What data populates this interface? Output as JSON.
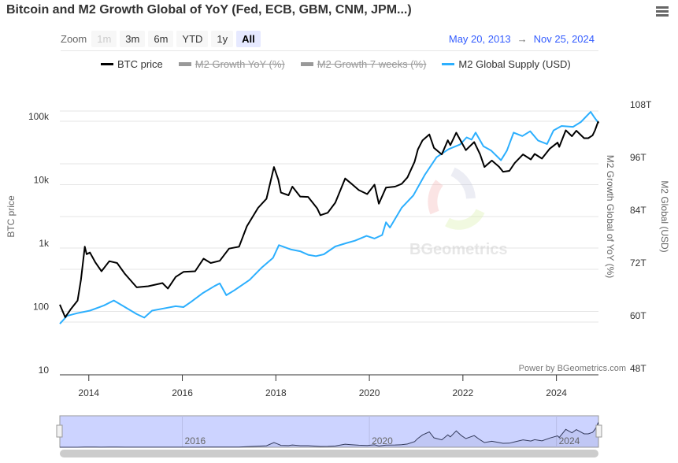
{
  "title": "Bitcoin and M2 Growth Global of YoY (Fed, ECB, GBM, CNM, JPM...)",
  "menu_icon": "hamburger-menu-icon",
  "range_selector": {
    "label": "Zoom",
    "buttons": [
      {
        "label": "1m",
        "state": "disabled"
      },
      {
        "label": "3m",
        "state": "normal"
      },
      {
        "label": "6m",
        "state": "normal"
      },
      {
        "label": "YTD",
        "state": "normal"
      },
      {
        "label": "1y",
        "state": "normal"
      },
      {
        "label": "All",
        "state": "active"
      }
    ],
    "from": "May 20, 2013",
    "arrow": "→",
    "to": "Nov 25, 2024"
  },
  "credit": "Power by BGeometrics.com",
  "watermark": "BGeometrics",
  "colors": {
    "btc": "#000000",
    "m2": "#2caffe",
    "navigator_fill": "#ccd3ff",
    "range_text": "#335cff"
  },
  "chart_data": {
    "type": "line",
    "title": "Bitcoin and M2 Growth Global of YoY (Fed, ECB, GBM, CNM, JPM...)",
    "xrange": [
      "2013-05-20",
      "2024-11-25"
    ],
    "x_ticks": [
      "2014",
      "2016",
      "2018",
      "2020",
      "2022",
      "2024"
    ],
    "legend": [
      {
        "name": "BTC price",
        "visible": true
      },
      {
        "name": "M2 Growth YoY (%)",
        "visible": false
      },
      {
        "name": "M2 Growth 7 weeks (%)",
        "visible": false
      },
      {
        "name": "M2 Global Supply (USD)",
        "visible": true
      }
    ],
    "legend_position": "top",
    "grid": true,
    "y_left": {
      "title": "BTC price",
      "scale": "log",
      "range": [
        10,
        100000
      ],
      "ticks": [
        "10",
        "100",
        "1k",
        "10k",
        "100k"
      ]
    },
    "y_right_1": {
      "title": "M2 Growth Global of YoY (%)"
    },
    "y_right_2": {
      "title": "M2 Global (USD)",
      "range": [
        48,
        108
      ],
      "unit": "T",
      "ticks": [
        "48T",
        "60T",
        "72T",
        "84T",
        "96T",
        "108T"
      ]
    },
    "navigator_ticks": [
      "2016",
      "2020",
      "2024"
    ],
    "series": [
      {
        "name": "BTC price",
        "axis": "left",
        "points": [
          [
            "2013-05-20",
            128
          ],
          [
            "2013-07-01",
            81
          ],
          [
            "2013-08-15",
            110
          ],
          [
            "2013-10-05",
            148
          ],
          [
            "2013-11-01",
            316
          ],
          [
            "2013-12-01",
            1050
          ],
          [
            "2013-12-15",
            800
          ],
          [
            "2014-01-10",
            850
          ],
          [
            "2014-02-20",
            600
          ],
          [
            "2014-04-10",
            430
          ],
          [
            "2014-06-10",
            620
          ],
          [
            "2014-08-10",
            580
          ],
          [
            "2014-10-10",
            390
          ],
          [
            "2015-01-10",
            240
          ],
          [
            "2015-04-10",
            250
          ],
          [
            "2015-07-30",
            280
          ],
          [
            "2015-09-10",
            230
          ],
          [
            "2015-11-10",
            350
          ],
          [
            "2016-01-10",
            420
          ],
          [
            "2016-04-10",
            430
          ],
          [
            "2016-06-15",
            680
          ],
          [
            "2016-08-10",
            580
          ],
          [
            "2016-10-20",
            630
          ],
          [
            "2017-01-01",
            980
          ],
          [
            "2017-03-20",
            1050
          ],
          [
            "2017-05-20",
            2200
          ],
          [
            "2017-08-15",
            4300
          ],
          [
            "2017-10-20",
            6000
          ],
          [
            "2017-12-17",
            19000
          ],
          [
            "2018-01-20",
            12000
          ],
          [
            "2018-02-10",
            7500
          ],
          [
            "2018-04-10",
            6800
          ],
          [
            "2018-05-10",
            9300
          ],
          [
            "2018-07-10",
            6500
          ],
          [
            "2018-09-10",
            6400
          ],
          [
            "2018-11-20",
            4200
          ],
          [
            "2018-12-15",
            3300
          ],
          [
            "2019-02-10",
            3600
          ],
          [
            "2019-04-10",
            5200
          ],
          [
            "2019-06-26",
            12500
          ],
          [
            "2019-08-10",
            10500
          ],
          [
            "2019-10-10",
            8200
          ],
          [
            "2019-12-15",
            7100
          ],
          [
            "2020-02-10",
            10000
          ],
          [
            "2020-03-15",
            5000
          ],
          [
            "2020-05-10",
            9000
          ],
          [
            "2020-07-20",
            9300
          ],
          [
            "2020-09-10",
            10300
          ],
          [
            "2020-10-25",
            13000
          ],
          [
            "2020-12-20",
            23000
          ],
          [
            "2021-01-15",
            36000
          ],
          [
            "2021-02-20",
            50000
          ],
          [
            "2021-04-14",
            62000
          ],
          [
            "2021-05-20",
            38000
          ],
          [
            "2021-07-20",
            30000
          ],
          [
            "2021-09-05",
            50000
          ],
          [
            "2021-09-25",
            42000
          ],
          [
            "2021-11-10",
            66000
          ],
          [
            "2021-12-20",
            47000
          ],
          [
            "2022-01-24",
            35000
          ],
          [
            "2022-03-30",
            47000
          ],
          [
            "2022-05-15",
            30000
          ],
          [
            "2022-06-18",
            19000
          ],
          [
            "2022-08-15",
            24000
          ],
          [
            "2022-10-10",
            19200
          ],
          [
            "2022-11-10",
            16000
          ],
          [
            "2022-12-30",
            16500
          ],
          [
            "2023-02-10",
            22000
          ],
          [
            "2023-04-15",
            30000
          ],
          [
            "2023-06-15",
            25000
          ],
          [
            "2023-07-15",
            30500
          ],
          [
            "2023-09-10",
            25800
          ],
          [
            "2023-11-10",
            37000
          ],
          [
            "2024-01-10",
            46000
          ],
          [
            "2024-01-23",
            39500
          ],
          [
            "2024-03-14",
            72000
          ],
          [
            "2024-05-01",
            58000
          ],
          [
            "2024-06-05",
            71000
          ],
          [
            "2024-08-05",
            54000
          ],
          [
            "2024-09-06",
            54000
          ],
          [
            "2024-10-10",
            60000
          ],
          [
            "2024-10-29",
            72000
          ],
          [
            "2024-11-22",
            98000
          ],
          [
            "2024-11-25",
            93000
          ]
        ]
      },
      {
        "name": "M2 Global Supply (USD)",
        "axis": "right",
        "unit": "T",
        "points": [
          [
            "2013-05-20",
            59.6
          ],
          [
            "2013-07-15",
            61.4
          ],
          [
            "2013-10-01",
            62.0
          ],
          [
            "2014-01-10",
            62.6
          ],
          [
            "2014-05-01",
            63.8
          ],
          [
            "2014-07-15",
            64.9
          ],
          [
            "2014-10-10",
            63.4
          ],
          [
            "2015-01-10",
            61.8
          ],
          [
            "2015-03-10",
            61.0
          ],
          [
            "2015-05-10",
            62.6
          ],
          [
            "2015-08-10",
            63.1
          ],
          [
            "2015-11-10",
            63.6
          ],
          [
            "2016-01-10",
            63.4
          ],
          [
            "2016-03-10",
            64.6
          ],
          [
            "2016-06-10",
            66.6
          ],
          [
            "2016-09-10",
            68.2
          ],
          [
            "2016-10-20",
            68.8
          ],
          [
            "2016-12-10",
            66.1
          ],
          [
            "2017-02-10",
            67.2
          ],
          [
            "2017-06-10",
            69.6
          ],
          [
            "2017-09-10",
            72.3
          ],
          [
            "2017-12-10",
            74.6
          ],
          [
            "2018-01-25",
            77.5
          ],
          [
            "2018-05-01",
            76.5
          ],
          [
            "2018-07-10",
            76.1
          ],
          [
            "2018-09-10",
            75.3
          ],
          [
            "2018-11-10",
            75.0
          ],
          [
            "2019-01-10",
            75.4
          ],
          [
            "2019-04-10",
            77.2
          ],
          [
            "2019-07-10",
            78.0
          ],
          [
            "2019-09-10",
            78.5
          ],
          [
            "2019-12-10",
            79.6
          ],
          [
            "2020-02-10",
            79.0
          ],
          [
            "2020-04-10",
            79.8
          ],
          [
            "2020-05-10",
            82.7
          ],
          [
            "2020-06-10",
            81.5
          ],
          [
            "2020-09-10",
            86.0
          ],
          [
            "2020-12-10",
            88.8
          ],
          [
            "2021-03-10",
            93.5
          ],
          [
            "2021-06-10",
            97.5
          ],
          [
            "2021-09-10",
            99.3
          ],
          [
            "2021-12-10",
            100.4
          ],
          [
            "2022-01-30",
            102.0
          ],
          [
            "2022-03-10",
            101.5
          ],
          [
            "2022-04-10",
            103.1
          ],
          [
            "2022-06-10",
            100.0
          ],
          [
            "2022-08-10",
            99.0
          ],
          [
            "2022-10-25",
            96.8
          ],
          [
            "2022-12-10",
            99.0
          ],
          [
            "2023-02-01",
            103.1
          ],
          [
            "2023-04-10",
            102.3
          ],
          [
            "2023-06-10",
            103.4
          ],
          [
            "2023-08-10",
            101.3
          ],
          [
            "2023-10-20",
            100.5
          ],
          [
            "2023-12-10",
            103.6
          ],
          [
            "2024-02-10",
            104.6
          ],
          [
            "2024-05-10",
            104.4
          ],
          [
            "2024-07-10",
            105.5
          ],
          [
            "2024-09-25",
            107.8
          ],
          [
            "2024-10-25",
            106.5
          ],
          [
            "2024-11-25",
            105.3
          ]
        ]
      }
    ]
  }
}
